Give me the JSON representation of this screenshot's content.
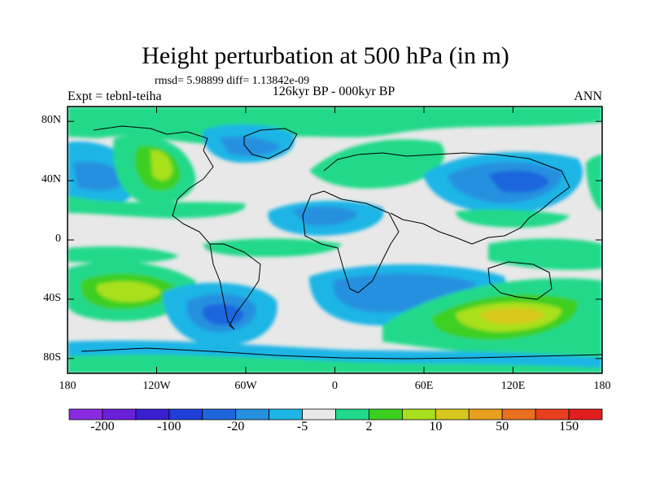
{
  "header": {
    "title": "Height perturbation at 500 hPa (in m)",
    "stats": "rmsd= 5.98899 diff= 1.13842e-09",
    "left_label": "Expt = tebnl-teiha",
    "center_label": "126kyr BP - 000kyr BP",
    "right_label": "ANN"
  },
  "axes": {
    "lat_labels": [
      {
        "text": "80N",
        "lat": 80
      },
      {
        "text": "40N",
        "lat": 40
      },
      {
        "text": "0",
        "lat": 0
      },
      {
        "text": "40S",
        "lat": -40
      },
      {
        "text": "80S",
        "lat": -80
      }
    ],
    "lon_labels": [
      {
        "text": "180",
        "lon": -180
      },
      {
        "text": "120W",
        "lon": -120
      },
      {
        "text": "60W",
        "lon": -60
      },
      {
        "text": "0",
        "lon": 0
      },
      {
        "text": "60E",
        "lon": 60
      },
      {
        "text": "120E",
        "lon": 120
      },
      {
        "text": "180",
        "lon": 180
      }
    ],
    "lat_range": [
      -90,
      90
    ],
    "lon_range": [
      -180,
      180
    ]
  },
  "colorbar": {
    "colors": [
      "#8a2be2",
      "#6a1fd8",
      "#3a1fd0",
      "#1f3fd8",
      "#1f66dd",
      "#2590e0",
      "#1eb5e6",
      "#e8e8e8",
      "#21d98a",
      "#3ccf20",
      "#a8e01e",
      "#d8c81e",
      "#e8a01e",
      "#e8701e",
      "#e8401e",
      "#e01e1e"
    ],
    "labels": [
      {
        "text": "-200",
        "index": 1
      },
      {
        "text": "-100",
        "index": 3
      },
      {
        "text": "-20",
        "index": 5
      },
      {
        "text": "-5",
        "index": 7
      },
      {
        "text": "2",
        "index": 9
      },
      {
        "text": "10",
        "index": 11
      },
      {
        "text": "50",
        "index": 13
      },
      {
        "text": "150",
        "index": 15
      }
    ]
  }
}
